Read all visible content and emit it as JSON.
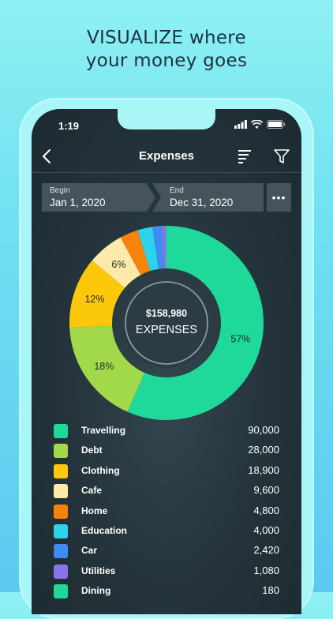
{
  "headline": {
    "line1": "VISUALIZE where",
    "line2": "your money goes"
  },
  "status_bar": {
    "time": "1:19"
  },
  "nav": {
    "title": "Expenses"
  },
  "date_range": {
    "begin_label": "Begin",
    "begin_value": "Jan 1, 2020",
    "end_label": "End",
    "end_value": "Dec 31, 2020",
    "more_label": "•••"
  },
  "chart_data": {
    "type": "pie",
    "center_amount": "$158,980",
    "center_label": "EXPENSES",
    "slices": [
      {
        "category": "Travelling",
        "value": 90000,
        "color": "#1fd99a",
        "label": "57%"
      },
      {
        "category": "Debt",
        "value": 28000,
        "color": "#a2d94a",
        "label": "18%"
      },
      {
        "category": "Clothing",
        "value": 18900,
        "color": "#fcc80a",
        "label": "12%"
      },
      {
        "category": "Cafe",
        "value": 9600,
        "color": "#fde9a9",
        "label": "6%"
      },
      {
        "category": "Home",
        "value": 4800,
        "color": "#f7830a",
        "label": ""
      },
      {
        "category": "Education",
        "value": 4000,
        "color": "#2ed2ea",
        "label": ""
      },
      {
        "category": "Car",
        "value": 2420,
        "color": "#3d8df0",
        "label": ""
      },
      {
        "category": "Utilities",
        "value": 1080,
        "color": "#8a72e8",
        "label": ""
      },
      {
        "category": "Dining",
        "value": 180,
        "color": "#1fd99a",
        "label": ""
      }
    ]
  },
  "legend": [
    {
      "label": "Travelling",
      "value": "90,000",
      "color": "#1fd99a"
    },
    {
      "label": "Debt",
      "value": "28,000",
      "color": "#a2d94a"
    },
    {
      "label": "Clothing",
      "value": "18,900",
      "color": "#fcc80a"
    },
    {
      "label": "Cafe",
      "value": "9,600",
      "color": "#fde9a9"
    },
    {
      "label": "Home",
      "value": "4,800",
      "color": "#f7830a"
    },
    {
      "label": "Education",
      "value": "4,000",
      "color": "#2ed2ea"
    },
    {
      "label": "Car",
      "value": "2,420",
      "color": "#3d8df0"
    },
    {
      "label": "Utilities",
      "value": "1,080",
      "color": "#8a72e8"
    },
    {
      "label": "Dining",
      "value": "180",
      "color": "#1fd99a"
    }
  ]
}
